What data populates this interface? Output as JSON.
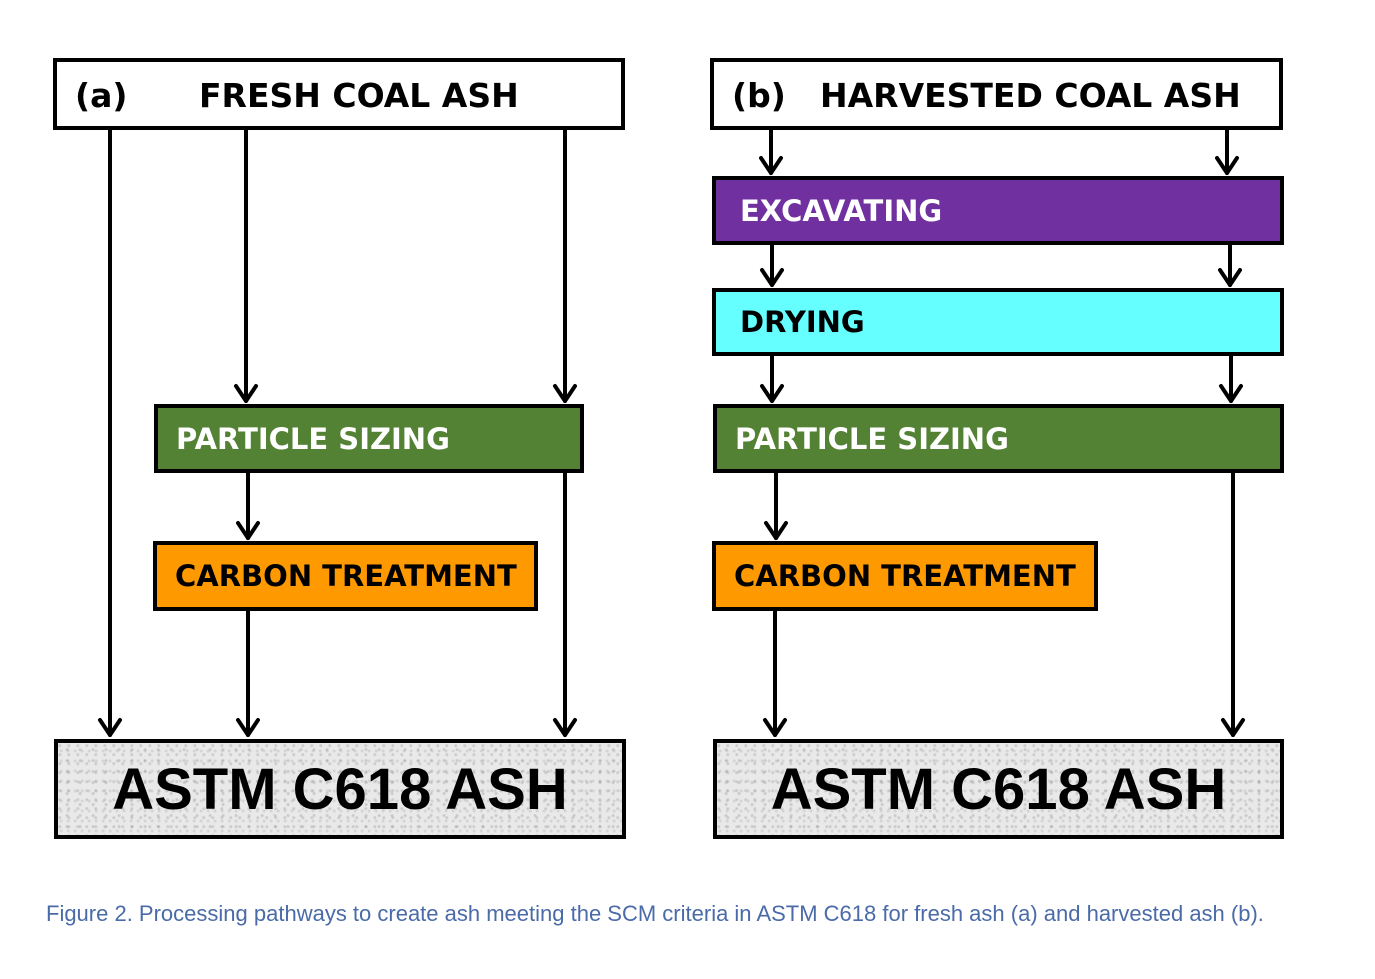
{
  "panel_a": {
    "tag": "(a)",
    "title": "FRESH COAL ASH",
    "particle_sizing": "PARTICLE SIZING",
    "carbon_treatment": "CARBON TREATMENT",
    "result": "ASTM C618 ASH"
  },
  "panel_b": {
    "tag": "(b)",
    "title": "HARVESTED COAL ASH",
    "excavating": "EXCAVATING",
    "drying": "DRYING",
    "particle_sizing": "PARTICLE SIZING",
    "carbon_treatment": "CARBON TREATMENT",
    "result": "ASTM C618 ASH"
  },
  "colors": {
    "particle_sizing": "#548235",
    "carbon_treatment": "#ff9900",
    "excavating": "#7030a0",
    "drying": "#66ffff"
  },
  "caption": "Figure 2. Processing pathways to create ash meeting the SCM criteria in ASTM C618 for fresh ash (a) and harvested ash (b)."
}
